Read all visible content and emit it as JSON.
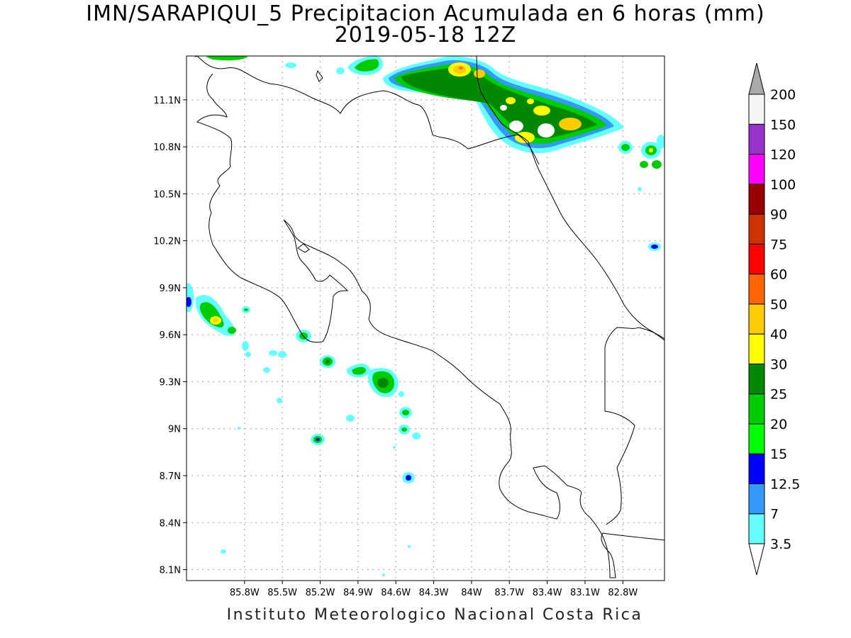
{
  "title_line1": "IMN/SARAPIQUI_5 Precipitacion Acumulada en 6 horas (mm)",
  "title_line2": "2019-05-18 12Z",
  "footer": "Instituto Meteorologico Nacional Costa Rica",
  "map": {
    "lon_range": [
      -86.26,
      -82.47
    ],
    "lat_range": [
      8.03,
      11.38
    ],
    "grid": true,
    "lon_ticks": [
      "85.8W",
      "85.5W",
      "85.2W",
      "84.9W",
      "84.6W",
      "84.3W",
      "84W",
      "83.7W",
      "83.4W",
      "83.1W",
      "82.8W"
    ],
    "lat_ticks": [
      "11.1N",
      "10.8N",
      "10.5N",
      "10.2N",
      "9.9N",
      "9.6N",
      "9.3N",
      "9N",
      "8.7N",
      "8.4N",
      "8.1N"
    ]
  },
  "colorbar": {
    "levels": [
      {
        "label": "3.5",
        "color": "#66ffff"
      },
      {
        "label": "7",
        "color": "#3399ff"
      },
      {
        "label": "12.5",
        "color": "#0000ff"
      },
      {
        "label": "15",
        "color": "#00ff00"
      },
      {
        "label": "20",
        "color": "#00cc00"
      },
      {
        "label": "25",
        "color": "#008800"
      },
      {
        "label": "30",
        "color": "#ffff00"
      },
      {
        "label": "40",
        "color": "#ffcc00"
      },
      {
        "label": "50",
        "color": "#ff6600"
      },
      {
        "label": "60",
        "color": "#ff0000"
      },
      {
        "label": "75",
        "color": "#cc3300"
      },
      {
        "label": "90",
        "color": "#990000"
      },
      {
        "label": "100",
        "color": "#ff00ff"
      },
      {
        "label": "120",
        "color": "#9933cc"
      },
      {
        "label": "150",
        "color": "#f5f5f5"
      },
      {
        "label": "200",
        "color": "#aaaaaa"
      }
    ]
  }
}
